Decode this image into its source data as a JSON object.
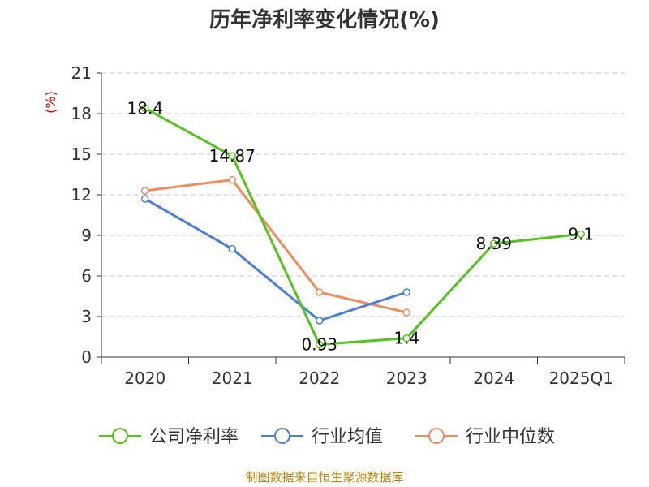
{
  "chart_data": {
    "type": "line",
    "title": "历年净利率变化情况(%)",
    "unit_label": "(%)",
    "categories": [
      "2020",
      "2021",
      "2022",
      "2023",
      "2024",
      "2025Q1"
    ],
    "ylim": [
      0,
      21
    ],
    "yticks": [
      "0",
      "3",
      "6",
      "9",
      "12",
      "15",
      "18",
      "21"
    ],
    "grid": true,
    "legend_position": "bottom",
    "series": [
      {
        "name": "公司净利率",
        "color": "#52c41a",
        "values": [
          18.4,
          14.87,
          0.93,
          1.4,
          8.39,
          9.1
        ],
        "labels": [
          "18.4",
          "14.87",
          "0.93",
          "1.4",
          "8.39",
          "9.1"
        ]
      },
      {
        "name": "行业均值",
        "color": "#4a7fe0",
        "values": [
          11.7,
          8.0,
          2.7,
          4.8,
          null,
          null
        ]
      },
      {
        "name": "行业中位数",
        "color": "#f28c5b",
        "values": [
          12.3,
          13.1,
          4.8,
          3.3,
          null,
          null
        ]
      }
    ]
  },
  "source": "制图数据来自恒生聚源数据库"
}
